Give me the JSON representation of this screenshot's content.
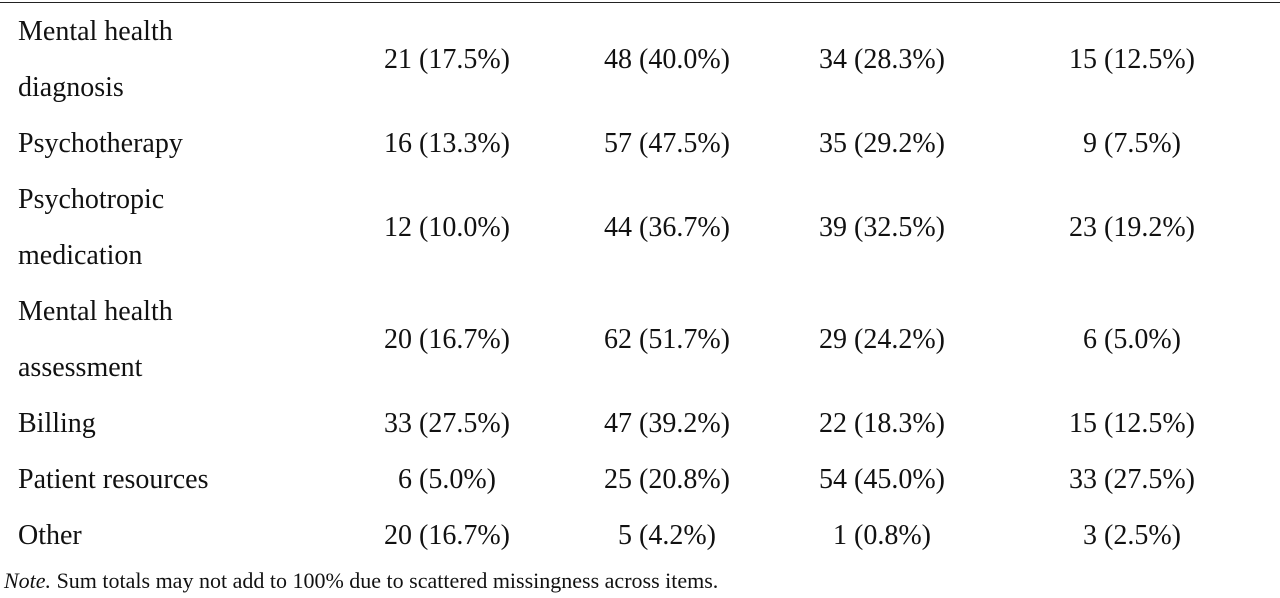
{
  "table": {
    "rows": [
      {
        "label": "Mental health\ndiagnosis",
        "cells": [
          "21 (17.5%)",
          "48 (40.0%)",
          "34 (28.3%)",
          "15 (12.5%)"
        ]
      },
      {
        "label": "Psychotherapy",
        "cells": [
          "16 (13.3%)",
          "57 (47.5%)",
          "35 (29.2%)",
          "9 (7.5%)"
        ]
      },
      {
        "label": "Psychotropic\nmedication",
        "cells": [
          "12 (10.0%)",
          "44 (36.7%)",
          "39 (32.5%)",
          "23 (19.2%)"
        ]
      },
      {
        "label": "Mental health\nassessment",
        "cells": [
          "20 (16.7%)",
          "62 (51.7%)",
          "29 (24.2%)",
          "6 (5.0%)"
        ]
      },
      {
        "label": "Billing",
        "cells": [
          "33 (27.5%)",
          "47 (39.2%)",
          "22 (18.3%)",
          "15 (12.5%)"
        ]
      },
      {
        "label": "Patient resources",
        "cells": [
          "6 (5.0%)",
          "25 (20.8%)",
          "54 (45.0%)",
          "33 (27.5%)"
        ]
      },
      {
        "label": "Other",
        "cells": [
          "20 (16.7%)",
          "5 (4.2%)",
          "1 (0.8%)",
          "3 (2.5%)"
        ]
      }
    ]
  },
  "note": {
    "label": "Note.",
    "text": "Sum totals may not add to 100% due to scattered missingness across items."
  }
}
